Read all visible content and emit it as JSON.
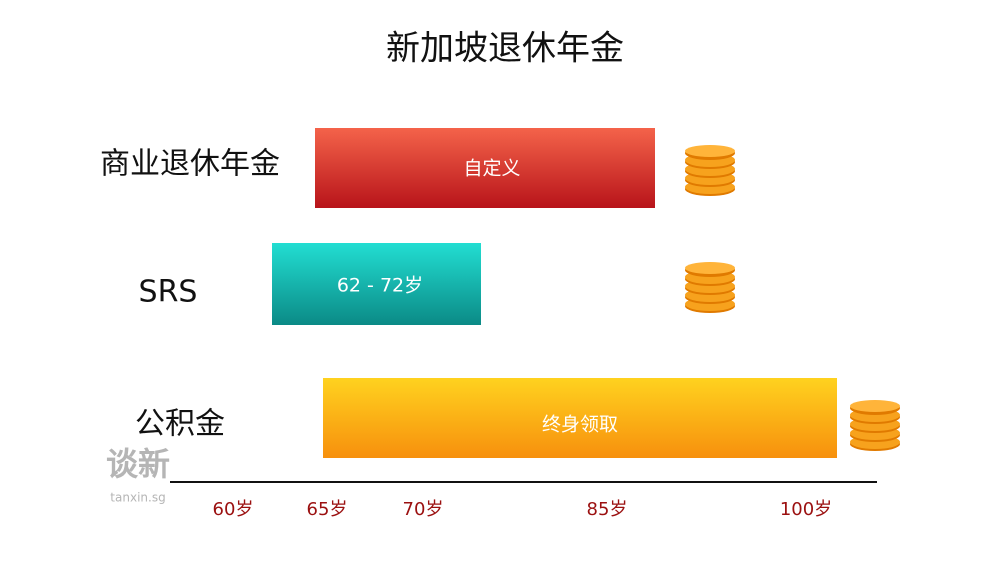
{
  "title": "新加坡退休年金",
  "rows": [
    {
      "label": "商业退休年金",
      "bar_text": "自定义"
    },
    {
      "label": "SRS",
      "bar_text": "62 - 72岁"
    },
    {
      "label": "公积金",
      "bar_text": "终身领取"
    }
  ],
  "axis_labels": [
    "60岁",
    "65岁",
    "70岁",
    "85岁",
    "100岁"
  ],
  "watermark": {
    "logo": "谈新",
    "url": "tanxin.sg"
  }
}
